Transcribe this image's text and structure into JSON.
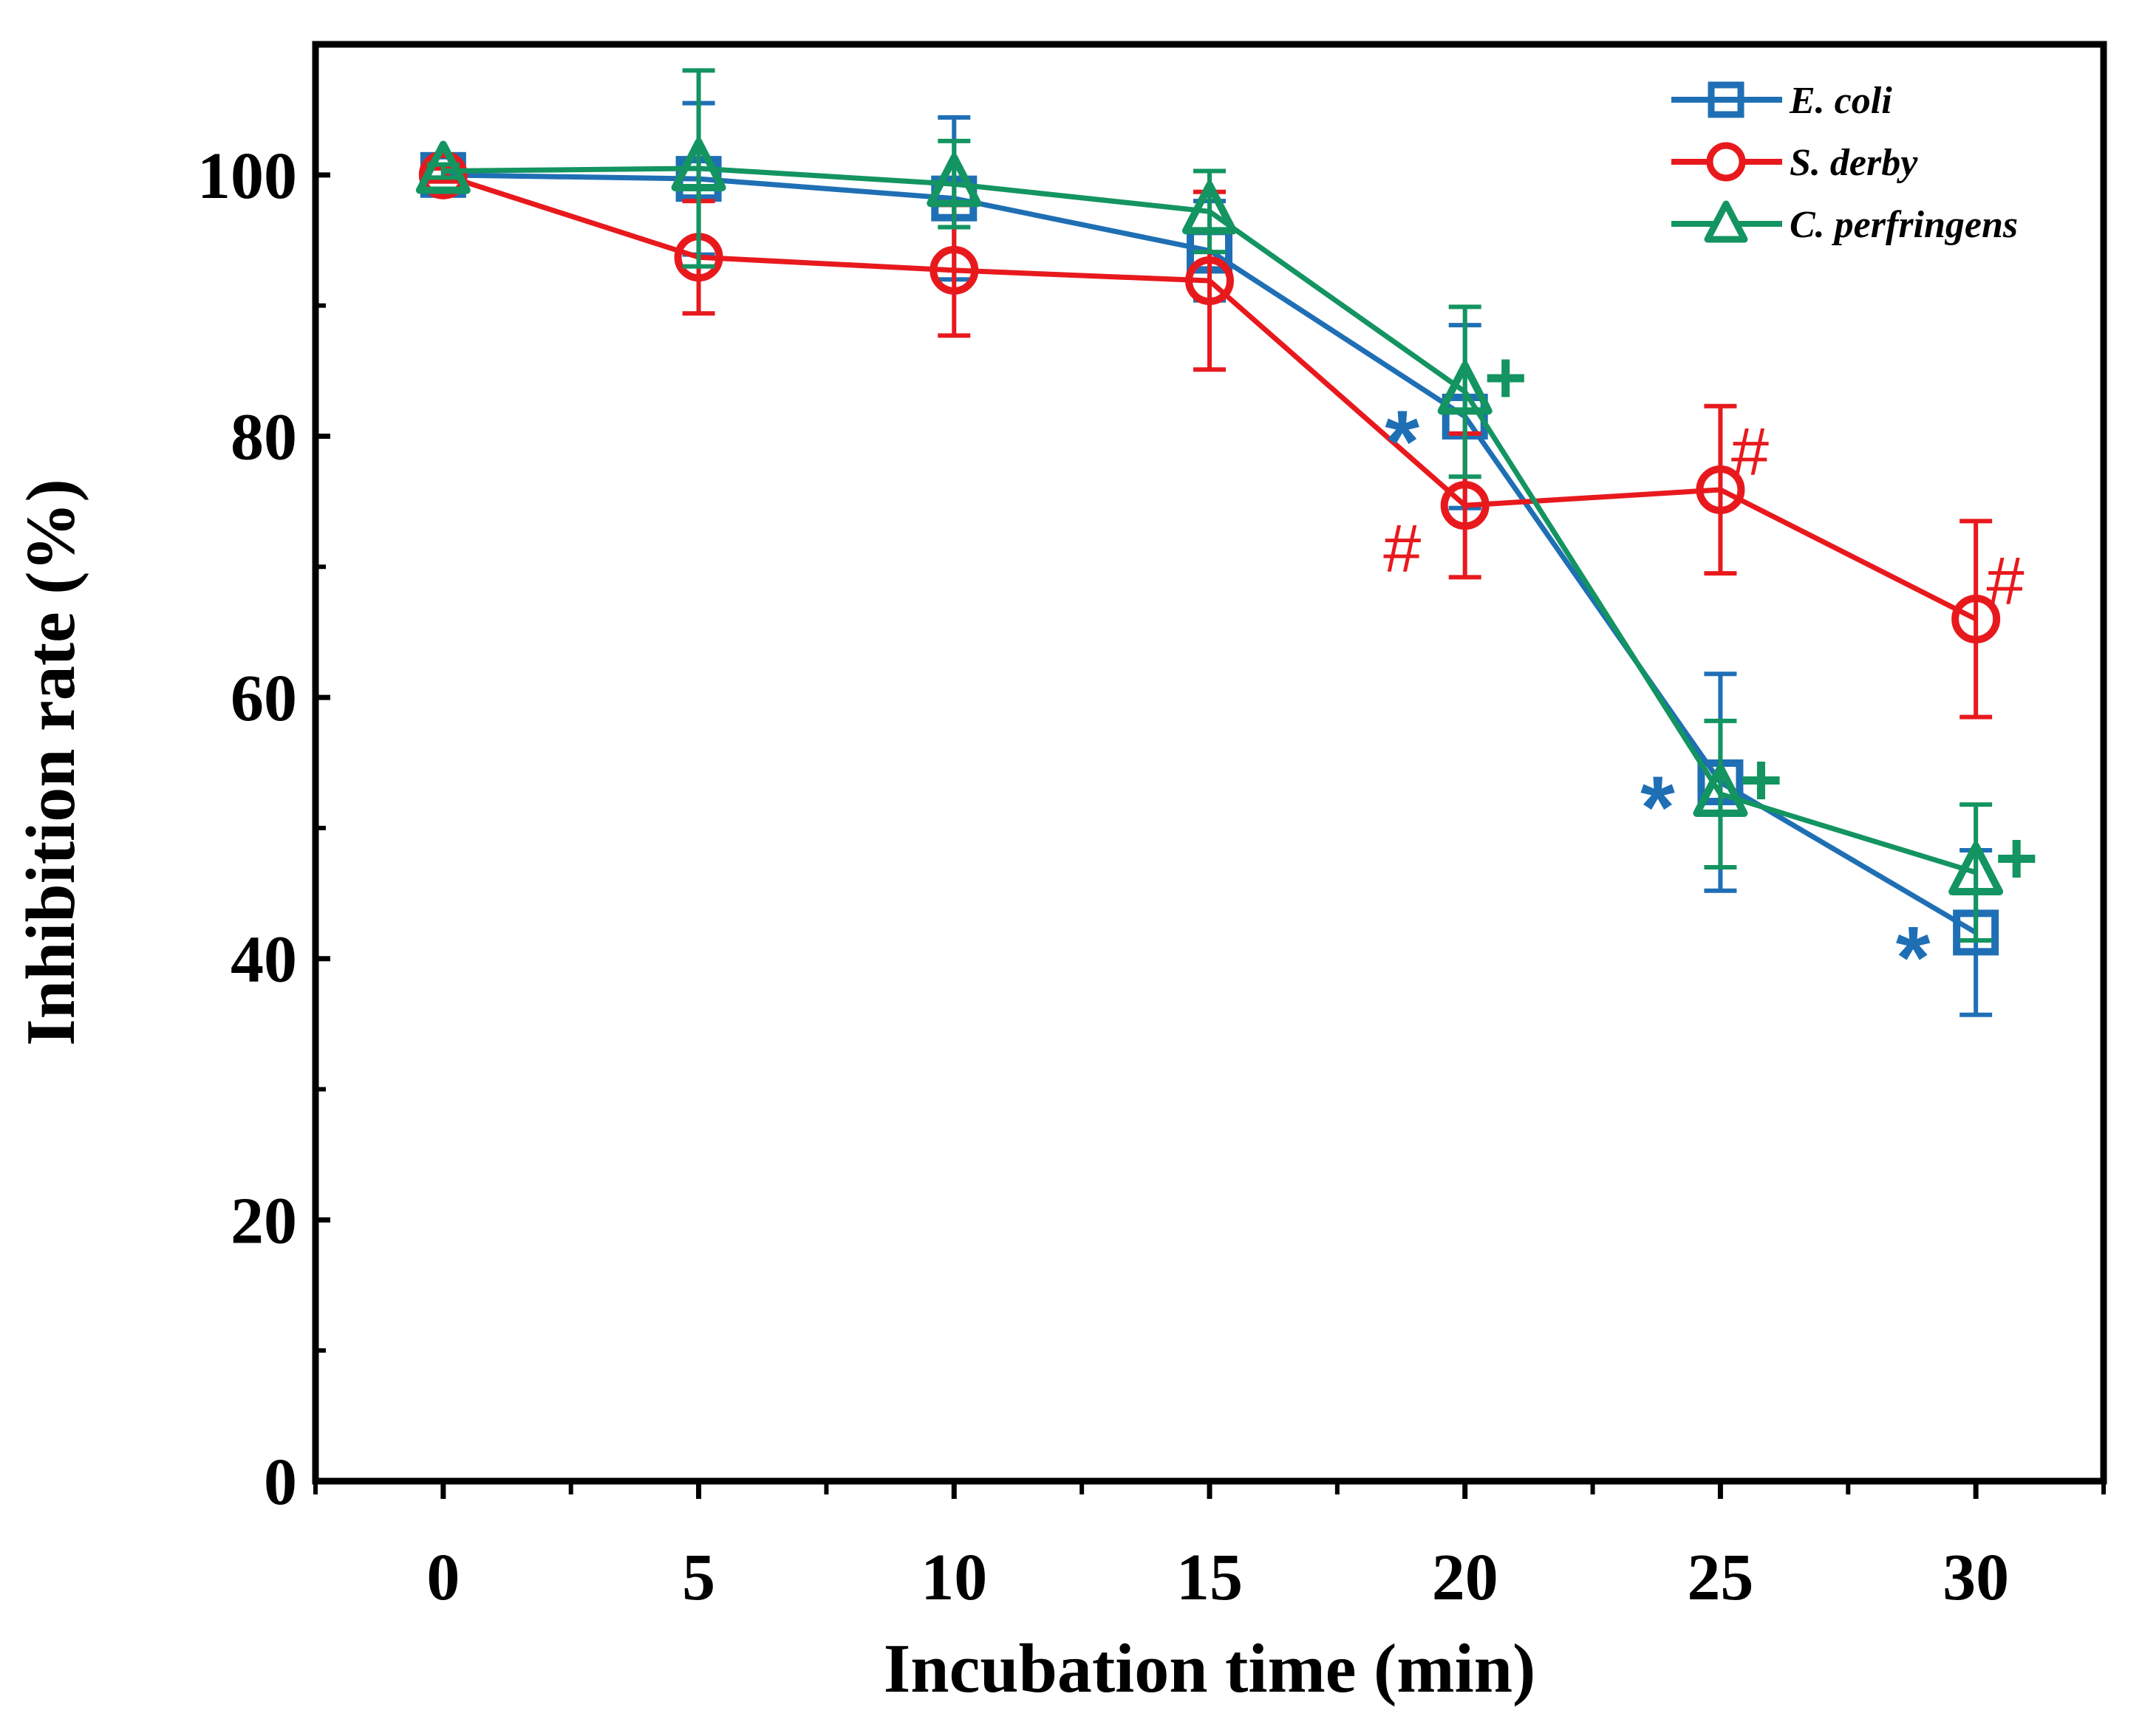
{
  "chart_data": {
    "type": "line",
    "title": "",
    "xlabel": "Incubation time (min)",
    "ylabel": "Inhibition rate (%)",
    "x": [
      0,
      5,
      10,
      15,
      20,
      25,
      30
    ],
    "xlim": [
      -2.5,
      32.5
    ],
    "ylim": [
      0,
      110
    ],
    "xticks": [
      0,
      5,
      10,
      15,
      20,
      25,
      30
    ],
    "xtick_labels": [
      "0",
      "5",
      "10",
      "15",
      "20",
      "25",
      "30"
    ],
    "yticks": [
      0,
      20,
      40,
      60,
      80,
      100
    ],
    "ytick_labels": [
      "0",
      "20",
      "40",
      "60",
      "80",
      "100"
    ],
    "grid": false,
    "legend_position": "top-right",
    "series": [
      {
        "name": "E. coli",
        "color": "#1f6fb5",
        "marker": "square",
        "values": [
          100,
          99.7,
          98.2,
          94.2,
          81.5,
          53.5,
          42.0
        ],
        "errors": [
          0.5,
          5.8,
          6.2,
          3.8,
          7.0,
          8.3,
          6.3
        ]
      },
      {
        "name": "S. derby",
        "color": "#e8191d",
        "marker": "circle",
        "values": [
          100,
          93.7,
          92.7,
          91.9,
          74.7,
          75.9,
          66.0
        ],
        "errors": [
          0.5,
          4.3,
          5.0,
          6.8,
          5.5,
          6.4,
          7.5
        ]
      },
      {
        "name": "C. perfringens",
        "color": "#139461",
        "marker": "triangle",
        "values": [
          100.3,
          100.5,
          99.3,
          97.2,
          83.4,
          52.6,
          46.6
        ],
        "errors": [
          0.5,
          7.5,
          3.3,
          3.1,
          6.5,
          5.6,
          5.2
        ]
      }
    ],
    "annotations": [
      {
        "text": "*",
        "x": 20,
        "series": "E. coli",
        "color": "#1f6fb5"
      },
      {
        "text": "*",
        "x": 25,
        "series": "E. coli",
        "color": "#1f6fb5"
      },
      {
        "text": "*",
        "x": 30,
        "series": "E. coli",
        "color": "#1f6fb5"
      },
      {
        "text": "#",
        "x": 20,
        "series": "S. derby",
        "color": "#e8191d"
      },
      {
        "text": "#",
        "x": 25,
        "series": "S. derby",
        "color": "#e8191d"
      },
      {
        "text": "#",
        "x": 30,
        "series": "S. derby",
        "color": "#e8191d"
      },
      {
        "text": "+",
        "x": 20,
        "series": "C. perfringens",
        "color": "#139461"
      },
      {
        "text": "+",
        "x": 25,
        "series": "C. perfringens",
        "color": "#139461"
      },
      {
        "text": "+",
        "x": 30,
        "series": "C. perfringens",
        "color": "#139461"
      }
    ]
  }
}
